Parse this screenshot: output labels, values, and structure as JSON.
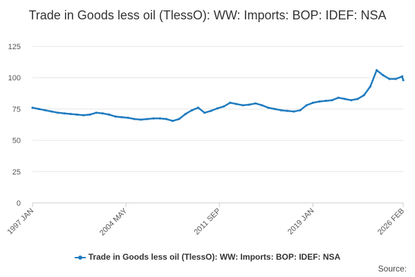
{
  "chart_data": {
    "type": "line",
    "title": "Trade in Goods less oil (TlessO): WW: Imports: BOP: IDEF: NSA",
    "xlabel": "",
    "ylabel": "",
    "ylim": [
      0,
      125
    ],
    "y_ticks": [
      "0",
      "25",
      "50",
      "75",
      "100",
      "125"
    ],
    "x_ticks": [
      "1997 JAN",
      "2004 MAY",
      "2011 SEP",
      "2019 JAN",
      "2026 FEB"
    ],
    "grid": "horizontal",
    "legend_position": "bottom",
    "series": [
      {
        "name": "Trade in Goods less oil (TlessO): WW: Imports: BOP: IDEF: NSA",
        "color": "#1f7bbf",
        "points": [
          [
            "1997-01",
            76
          ],
          [
            "1997-07",
            75
          ],
          [
            "1998-01",
            74
          ],
          [
            "1998-07",
            73
          ],
          [
            "1999-01",
            72
          ],
          [
            "1999-07",
            71.5
          ],
          [
            "2000-01",
            71
          ],
          [
            "2000-07",
            70.5
          ],
          [
            "2001-01",
            70
          ],
          [
            "2001-07",
            70.5
          ],
          [
            "2002-01",
            72
          ],
          [
            "2002-07",
            71.5
          ],
          [
            "2003-01",
            70.5
          ],
          [
            "2003-07",
            69
          ],
          [
            "2004-01",
            68.5
          ],
          [
            "2004-07",
            68
          ],
          [
            "2005-01",
            67
          ],
          [
            "2005-07",
            66.5
          ],
          [
            "2006-01",
            67
          ],
          [
            "2006-07",
            67.5
          ],
          [
            "2007-01",
            67.5
          ],
          [
            "2007-07",
            67
          ],
          [
            "2008-01",
            65.5
          ],
          [
            "2008-07",
            67
          ],
          [
            "2009-01",
            71
          ],
          [
            "2009-07",
            74
          ],
          [
            "2010-01",
            76
          ],
          [
            "2010-07",
            72
          ],
          [
            "2011-01",
            73.5
          ],
          [
            "2011-07",
            75.5
          ],
          [
            "2012-01",
            77
          ],
          [
            "2012-07",
            80
          ],
          [
            "2013-01",
            79
          ],
          [
            "2013-07",
            78
          ],
          [
            "2014-01",
            78.5
          ],
          [
            "2014-07",
            79.5
          ],
          [
            "2015-01",
            78
          ],
          [
            "2015-07",
            76
          ],
          [
            "2016-01",
            75
          ],
          [
            "2016-07",
            74
          ],
          [
            "2017-01",
            73.5
          ],
          [
            "2017-07",
            73
          ],
          [
            "2018-01",
            74
          ],
          [
            "2018-07",
            78
          ],
          [
            "2019-01",
            80
          ],
          [
            "2019-07",
            81
          ],
          [
            "2020-01",
            81.5
          ],
          [
            "2020-07",
            82
          ],
          [
            "2021-01",
            84
          ],
          [
            "2021-07",
            83
          ],
          [
            "2022-01",
            82
          ],
          [
            "2022-07",
            83
          ],
          [
            "2023-01",
            86
          ],
          [
            "2023-07",
            93
          ],
          [
            "2024-01",
            106
          ],
          [
            "2024-07",
            102
          ],
          [
            "2025-01",
            99
          ],
          [
            "2025-07",
            99
          ],
          [
            "2026-01",
            101
          ],
          [
            "2026-02",
            98
          ]
        ]
      }
    ]
  },
  "source_label": "Source:"
}
